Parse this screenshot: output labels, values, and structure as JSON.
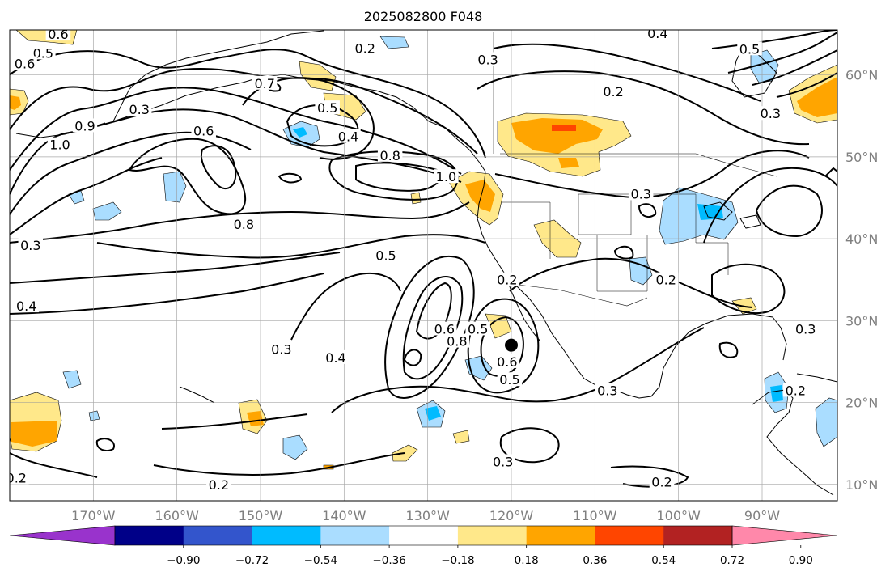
{
  "title": "2025082800 F048",
  "map": {
    "lon_min": -180,
    "lon_max": -81,
    "lat_min": 8,
    "lat_max": 65.5,
    "lon_ticks": [
      {
        "value": -170,
        "label": "170°W"
      },
      {
        "value": -160,
        "label": "160°W"
      },
      {
        "value": -150,
        "label": "150°W"
      },
      {
        "value": -140,
        "label": "140°W"
      },
      {
        "value": -130,
        "label": "130°W"
      },
      {
        "value": -120,
        "label": "120°W"
      },
      {
        "value": -110,
        "label": "110°W"
      },
      {
        "value": -100,
        "label": "100°W"
      },
      {
        "value": -90,
        "label": "90°W"
      }
    ],
    "lat_ticks": [
      {
        "value": 10,
        "label": "10°N"
      },
      {
        "value": 20,
        "label": "20°N"
      },
      {
        "value": 30,
        "label": "30°N"
      },
      {
        "value": 40,
        "label": "40°N"
      },
      {
        "value": 50,
        "label": "50°N"
      },
      {
        "value": 60,
        "label": "60°N"
      }
    ],
    "grid": true,
    "marker": {
      "lon": -120,
      "lat": 27
    }
  },
  "colorbar": {
    "colors": [
      "#9933cc",
      "#000088",
      "#3355cc",
      "#00bbff",
      "#aaddff",
      "#ffffff",
      "#ffe88a",
      "#ffa500",
      "#ff4500",
      "#b22222",
      "#ff88aa"
    ],
    "tick_labels": [
      "−0.90",
      "−0.72",
      "−0.54",
      "−0.36",
      "−0.18",
      "0.18",
      "0.36",
      "0.54",
      "0.72",
      "0.90"
    ]
  },
  "contour_labels": [
    {
      "text": "0.6",
      "lon": -174.2,
      "lat": 65.0
    },
    {
      "text": "0.5",
      "lon": -176.0,
      "lat": 62.7
    },
    {
      "text": "0.6",
      "lon": -178.2,
      "lat": 61.4
    },
    {
      "text": "1.0",
      "lon": -174.0,
      "lat": 51.5
    },
    {
      "text": "0.9",
      "lon": -171.0,
      "lat": 53.8
    },
    {
      "text": "0.3",
      "lon": -164.5,
      "lat": 55.8
    },
    {
      "text": "0.6",
      "lon": -156.8,
      "lat": 53.2
    },
    {
      "text": "0.7",
      "lon": -149.5,
      "lat": 59.0
    },
    {
      "text": "0.5",
      "lon": -142.0,
      "lat": 56.0
    },
    {
      "text": "0.4",
      "lon": -139.5,
      "lat": 52.5
    },
    {
      "text": "0.2",
      "lon": -137.5,
      "lat": 63.3
    },
    {
      "text": "0.3",
      "lon": -122.8,
      "lat": 61.9
    },
    {
      "text": "0.8",
      "lon": -134.5,
      "lat": 50.2
    },
    {
      "text": "1.0",
      "lon": -127.8,
      "lat": 47.6
    },
    {
      "text": "0.8",
      "lon": -152.0,
      "lat": 41.8
    },
    {
      "text": "0.5",
      "lon": -135.0,
      "lat": 38.0
    },
    {
      "text": "0.3",
      "lon": -177.5,
      "lat": 39.2
    },
    {
      "text": "0.4",
      "lon": -178.0,
      "lat": 31.8
    },
    {
      "text": "0.3",
      "lon": -147.5,
      "lat": 26.5
    },
    {
      "text": "0.4",
      "lon": -141.0,
      "lat": 25.5
    },
    {
      "text": "0.6",
      "lon": -128.0,
      "lat": 29.0
    },
    {
      "text": "0.8",
      "lon": -126.5,
      "lat": 27.5
    },
    {
      "text": "0.5",
      "lon": -124.0,
      "lat": 29.0
    },
    {
      "text": "0.6",
      "lon": -120.5,
      "lat": 25.0
    },
    {
      "text": "0.5",
      "lon": -120.2,
      "lat": 22.8
    },
    {
      "text": "0.2",
      "lon": -120.5,
      "lat": 35.0
    },
    {
      "text": "0.4",
      "lon": -102.5,
      "lat": 65.1
    },
    {
      "text": "0.5",
      "lon": -91.5,
      "lat": 63.2
    },
    {
      "text": "0.2",
      "lon": -107.8,
      "lat": 58.0
    },
    {
      "text": "0.3",
      "lon": -89.0,
      "lat": 55.3
    },
    {
      "text": "0.3",
      "lon": -104.5,
      "lat": 45.5
    },
    {
      "text": "0.2",
      "lon": -101.5,
      "lat": 35.0
    },
    {
      "text": "0.3",
      "lon": -108.5,
      "lat": 21.5
    },
    {
      "text": "0.3",
      "lon": -121.0,
      "lat": 12.8
    },
    {
      "text": "0.2",
      "lon": -179.2,
      "lat": 10.8
    },
    {
      "text": "0.2",
      "lon": -102.0,
      "lat": 10.3
    },
    {
      "text": "0.2",
      "lon": -86.0,
      "lat": 21.5
    },
    {
      "text": "0.3",
      "lon": -84.8,
      "lat": 29.0
    },
    {
      "text": "0.2",
      "lon": -155.0,
      "lat": 10.0
    }
  ]
}
